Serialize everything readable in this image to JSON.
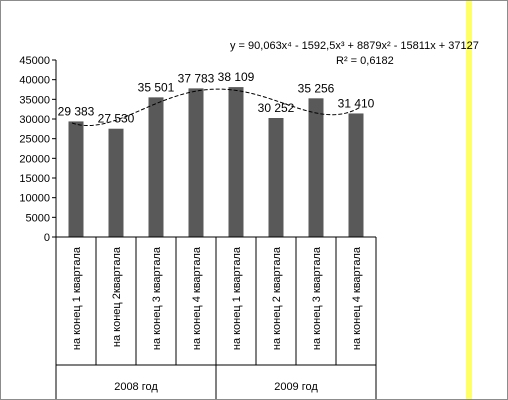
{
  "chart_data": {
    "type": "bar",
    "categories": [
      "на конец 1 квартала",
      "на конец 2квартала",
      "на конец 3 квартала",
      "на конец 4 квартала",
      "на конец 1 квартала",
      "на конец 2 квартала",
      "на конец 3 квартала",
      "на конец 4 квартала"
    ],
    "groups": [
      {
        "label": "2008 год",
        "from": 0,
        "to": 3
      },
      {
        "label": "2009 год",
        "from": 4,
        "to": 7
      }
    ],
    "values": [
      29383,
      27530,
      35501,
      37783,
      38109,
      30252,
      35256,
      31410
    ],
    "data_labels": [
      "29 383",
      "27 530",
      "35 501",
      "37 783",
      "38 109",
      "30 252",
      "35 256",
      "31 410"
    ],
    "ylim": [
      0,
      45000
    ],
    "yticks": [
      0,
      5000,
      10000,
      15000,
      20000,
      25000,
      30000,
      35000,
      40000,
      45000
    ],
    "ytick_labels": [
      "0",
      "5000",
      "10000",
      "15000",
      "20000",
      "25000",
      "30000",
      "35000",
      "40000",
      "45000"
    ],
    "trendline": {
      "type": "polynomial",
      "coefficients": [
        37127,
        -15811,
        8879,
        -1592.5,
        90.063
      ],
      "equation": "y = 90,063x⁴ - 1592,5x³ + 8879x² - 15811x + 37127",
      "r_squared": "R² = 0,6182"
    },
    "grid": false,
    "legend": "none",
    "bar_color": "#595959",
    "trend_color": "#000000",
    "right_stripe_color": "#ffff66"
  }
}
